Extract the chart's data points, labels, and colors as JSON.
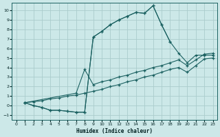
{
  "xlabel": "Humidex (Indice chaleur)",
  "bg_color": "#cce8e8",
  "grid_color": "#aacccc",
  "line_color": "#1a6060",
  "xlim": [
    -0.5,
    23.5
  ],
  "ylim": [
    -1.5,
    10.8
  ],
  "xticks": [
    0,
    1,
    2,
    3,
    4,
    5,
    6,
    7,
    8,
    9,
    10,
    11,
    12,
    13,
    14,
    15,
    16,
    17,
    18,
    19,
    20,
    21,
    22,
    23
  ],
  "yticks": [
    -1,
    0,
    1,
    2,
    3,
    4,
    5,
    6,
    7,
    8,
    9,
    10
  ],
  "curve1_x": [
    1,
    2,
    3,
    4,
    5,
    6,
    7,
    8,
    9,
    10,
    11,
    12,
    13,
    14,
    15,
    16,
    17,
    18
  ],
  "curve1_y": [
    0.3,
    0.0,
    -0.2,
    -0.5,
    -0.5,
    -0.6,
    -0.7,
    -0.7,
    7.2,
    7.8,
    8.5,
    9.0,
    9.4,
    9.8,
    9.7,
    10.5,
    8.5,
    6.7
  ],
  "curve2_x": [
    1,
    2,
    3,
    4,
    5,
    6,
    7,
    8,
    9,
    10,
    11,
    12,
    13,
    14,
    15,
    16,
    17,
    18,
    19,
    20,
    21,
    22,
    23
  ],
  "curve2_y": [
    0.3,
    0.0,
    -0.2,
    -0.5,
    -0.5,
    -0.6,
    -0.7,
    -0.7,
    7.2,
    7.8,
    8.5,
    9.0,
    9.4,
    9.8,
    9.7,
    10.5,
    8.5,
    6.7,
    5.5,
    4.5,
    5.3,
    5.3,
    5.3
  ],
  "line3_x": [
    1,
    7,
    8,
    9,
    10,
    11,
    12,
    13,
    14,
    15,
    16,
    17,
    18,
    19,
    20,
    21,
    22,
    23
  ],
  "line3_y": [
    0.3,
    1.3,
    3.8,
    2.2,
    2.5,
    2.7,
    3.0,
    3.2,
    3.5,
    3.7,
    4.0,
    4.2,
    4.5,
    4.8,
    4.2,
    4.8,
    5.4,
    5.5
  ],
  "line4_x": [
    1,
    2,
    3,
    4,
    5,
    6,
    7,
    8,
    9,
    10,
    11,
    12,
    13,
    14,
    15,
    16,
    17,
    18,
    19,
    20,
    21,
    22,
    23
  ],
  "line4_y": [
    0.3,
    0.4,
    0.5,
    0.7,
    0.8,
    1.0,
    1.1,
    1.3,
    1.5,
    1.7,
    2.0,
    2.2,
    2.5,
    2.7,
    3.0,
    3.2,
    3.5,
    3.8,
    4.0,
    3.5,
    4.2,
    4.9,
    5.0
  ]
}
